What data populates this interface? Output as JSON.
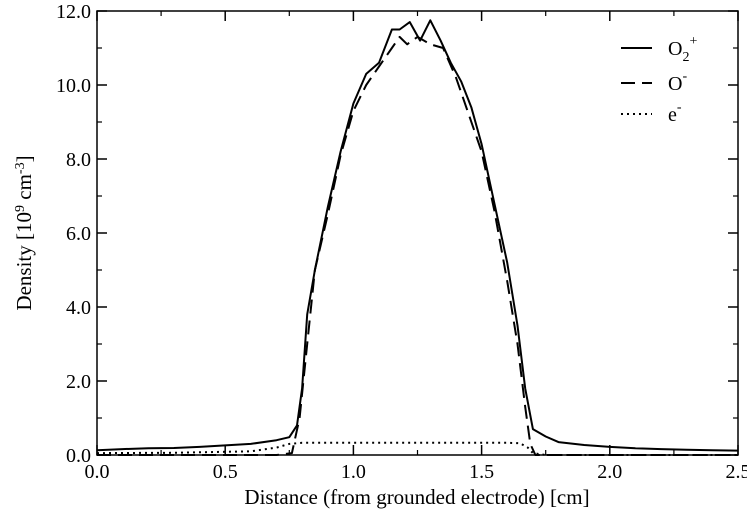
{
  "chart_data": {
    "type": "line",
    "title": "",
    "xlabel": "Distance (from grounded electrode) [cm]",
    "ylabel_parts": {
      "main": "Density [10",
      "exp1": "9",
      "mid": " cm",
      "exp2": "-3",
      "end": "]"
    },
    "xlim": [
      0.0,
      2.5
    ],
    "ylim": [
      0.0,
      12.0
    ],
    "xticks": [
      0.0,
      0.5,
      1.0,
      1.5,
      2.0,
      2.5
    ],
    "xtick_labels": [
      "0.0",
      "0.5",
      "1.0",
      "1.5",
      "2.0",
      "2.5"
    ],
    "yticks": [
      0,
      2,
      4,
      6,
      8,
      10,
      12
    ],
    "ytick_labels": [
      "0.0",
      "2.0",
      "4.0",
      "6.0",
      "8.0",
      "10.0",
      "12.0"
    ],
    "grid": false,
    "legend_position": "top-right",
    "series": [
      {
        "name": "O2+",
        "legend": {
          "base": "O",
          "sub": "2",
          "sup": "+"
        },
        "style": "solid",
        "points": [
          [
            0.0,
            0.13
          ],
          [
            0.1,
            0.16
          ],
          [
            0.2,
            0.18
          ],
          [
            0.3,
            0.19
          ],
          [
            0.4,
            0.22
          ],
          [
            0.5,
            0.26
          ],
          [
            0.6,
            0.3
          ],
          [
            0.7,
            0.4
          ],
          [
            0.75,
            0.48
          ],
          [
            0.78,
            0.8
          ],
          [
            0.8,
            1.8
          ],
          [
            0.82,
            3.8
          ],
          [
            0.85,
            5.0
          ],
          [
            0.9,
            6.7
          ],
          [
            0.95,
            8.2
          ],
          [
            1.0,
            9.5
          ],
          [
            1.05,
            10.3
          ],
          [
            1.1,
            10.6
          ],
          [
            1.15,
            11.5
          ],
          [
            1.18,
            11.5
          ],
          [
            1.22,
            11.7
          ],
          [
            1.26,
            11.2
          ],
          [
            1.3,
            11.75
          ],
          [
            1.34,
            11.2
          ],
          [
            1.38,
            10.6
          ],
          [
            1.42,
            10.1
          ],
          [
            1.46,
            9.4
          ],
          [
            1.5,
            8.4
          ],
          [
            1.55,
            6.8
          ],
          [
            1.6,
            5.2
          ],
          [
            1.64,
            3.5
          ],
          [
            1.67,
            1.8
          ],
          [
            1.7,
            0.7
          ],
          [
            1.75,
            0.5
          ],
          [
            1.8,
            0.35
          ],
          [
            1.9,
            0.27
          ],
          [
            2.0,
            0.22
          ],
          [
            2.1,
            0.18
          ],
          [
            2.2,
            0.16
          ],
          [
            2.3,
            0.14
          ],
          [
            2.4,
            0.13
          ],
          [
            2.5,
            0.12
          ]
        ]
      },
      {
        "name": "O-",
        "legend": {
          "base": "O",
          "sub": "",
          "sup": "-"
        },
        "style": "dashed",
        "points": [
          [
            0.0,
            0.0
          ],
          [
            0.5,
            0.0
          ],
          [
            0.7,
            0.0
          ],
          [
            0.76,
            0.05
          ],
          [
            0.79,
            1.0
          ],
          [
            0.82,
            3.0
          ],
          [
            0.85,
            5.0
          ],
          [
            0.9,
            6.5
          ],
          [
            0.95,
            8.1
          ],
          [
            1.0,
            9.3
          ],
          [
            1.05,
            10.0
          ],
          [
            1.1,
            10.5
          ],
          [
            1.15,
            11.0
          ],
          [
            1.18,
            11.3
          ],
          [
            1.21,
            11.1
          ],
          [
            1.25,
            11.3
          ],
          [
            1.3,
            11.1
          ],
          [
            1.35,
            11.0
          ],
          [
            1.4,
            10.2
          ],
          [
            1.45,
            9.2
          ],
          [
            1.5,
            8.2
          ],
          [
            1.55,
            6.6
          ],
          [
            1.6,
            4.7
          ],
          [
            1.64,
            3.0
          ],
          [
            1.67,
            1.3
          ],
          [
            1.69,
            0.3
          ],
          [
            1.71,
            0.0
          ],
          [
            2.0,
            0.0
          ],
          [
            2.5,
            0.0
          ]
        ]
      },
      {
        "name": "e-",
        "legend": {
          "base": "e",
          "sub": "",
          "sup": "-"
        },
        "style": "dotted",
        "points": [
          [
            0.0,
            0.05
          ],
          [
            0.3,
            0.06
          ],
          [
            0.6,
            0.1
          ],
          [
            0.7,
            0.2
          ],
          [
            0.75,
            0.3
          ],
          [
            0.8,
            0.33
          ],
          [
            1.0,
            0.33
          ],
          [
            1.2,
            0.33
          ],
          [
            1.4,
            0.33
          ],
          [
            1.6,
            0.33
          ],
          [
            1.65,
            0.32
          ],
          [
            1.68,
            0.2
          ],
          [
            1.7,
            0.05
          ],
          [
            1.75,
            0.0
          ],
          [
            2.0,
            0.0
          ],
          [
            2.5,
            0.0
          ]
        ]
      }
    ]
  }
}
